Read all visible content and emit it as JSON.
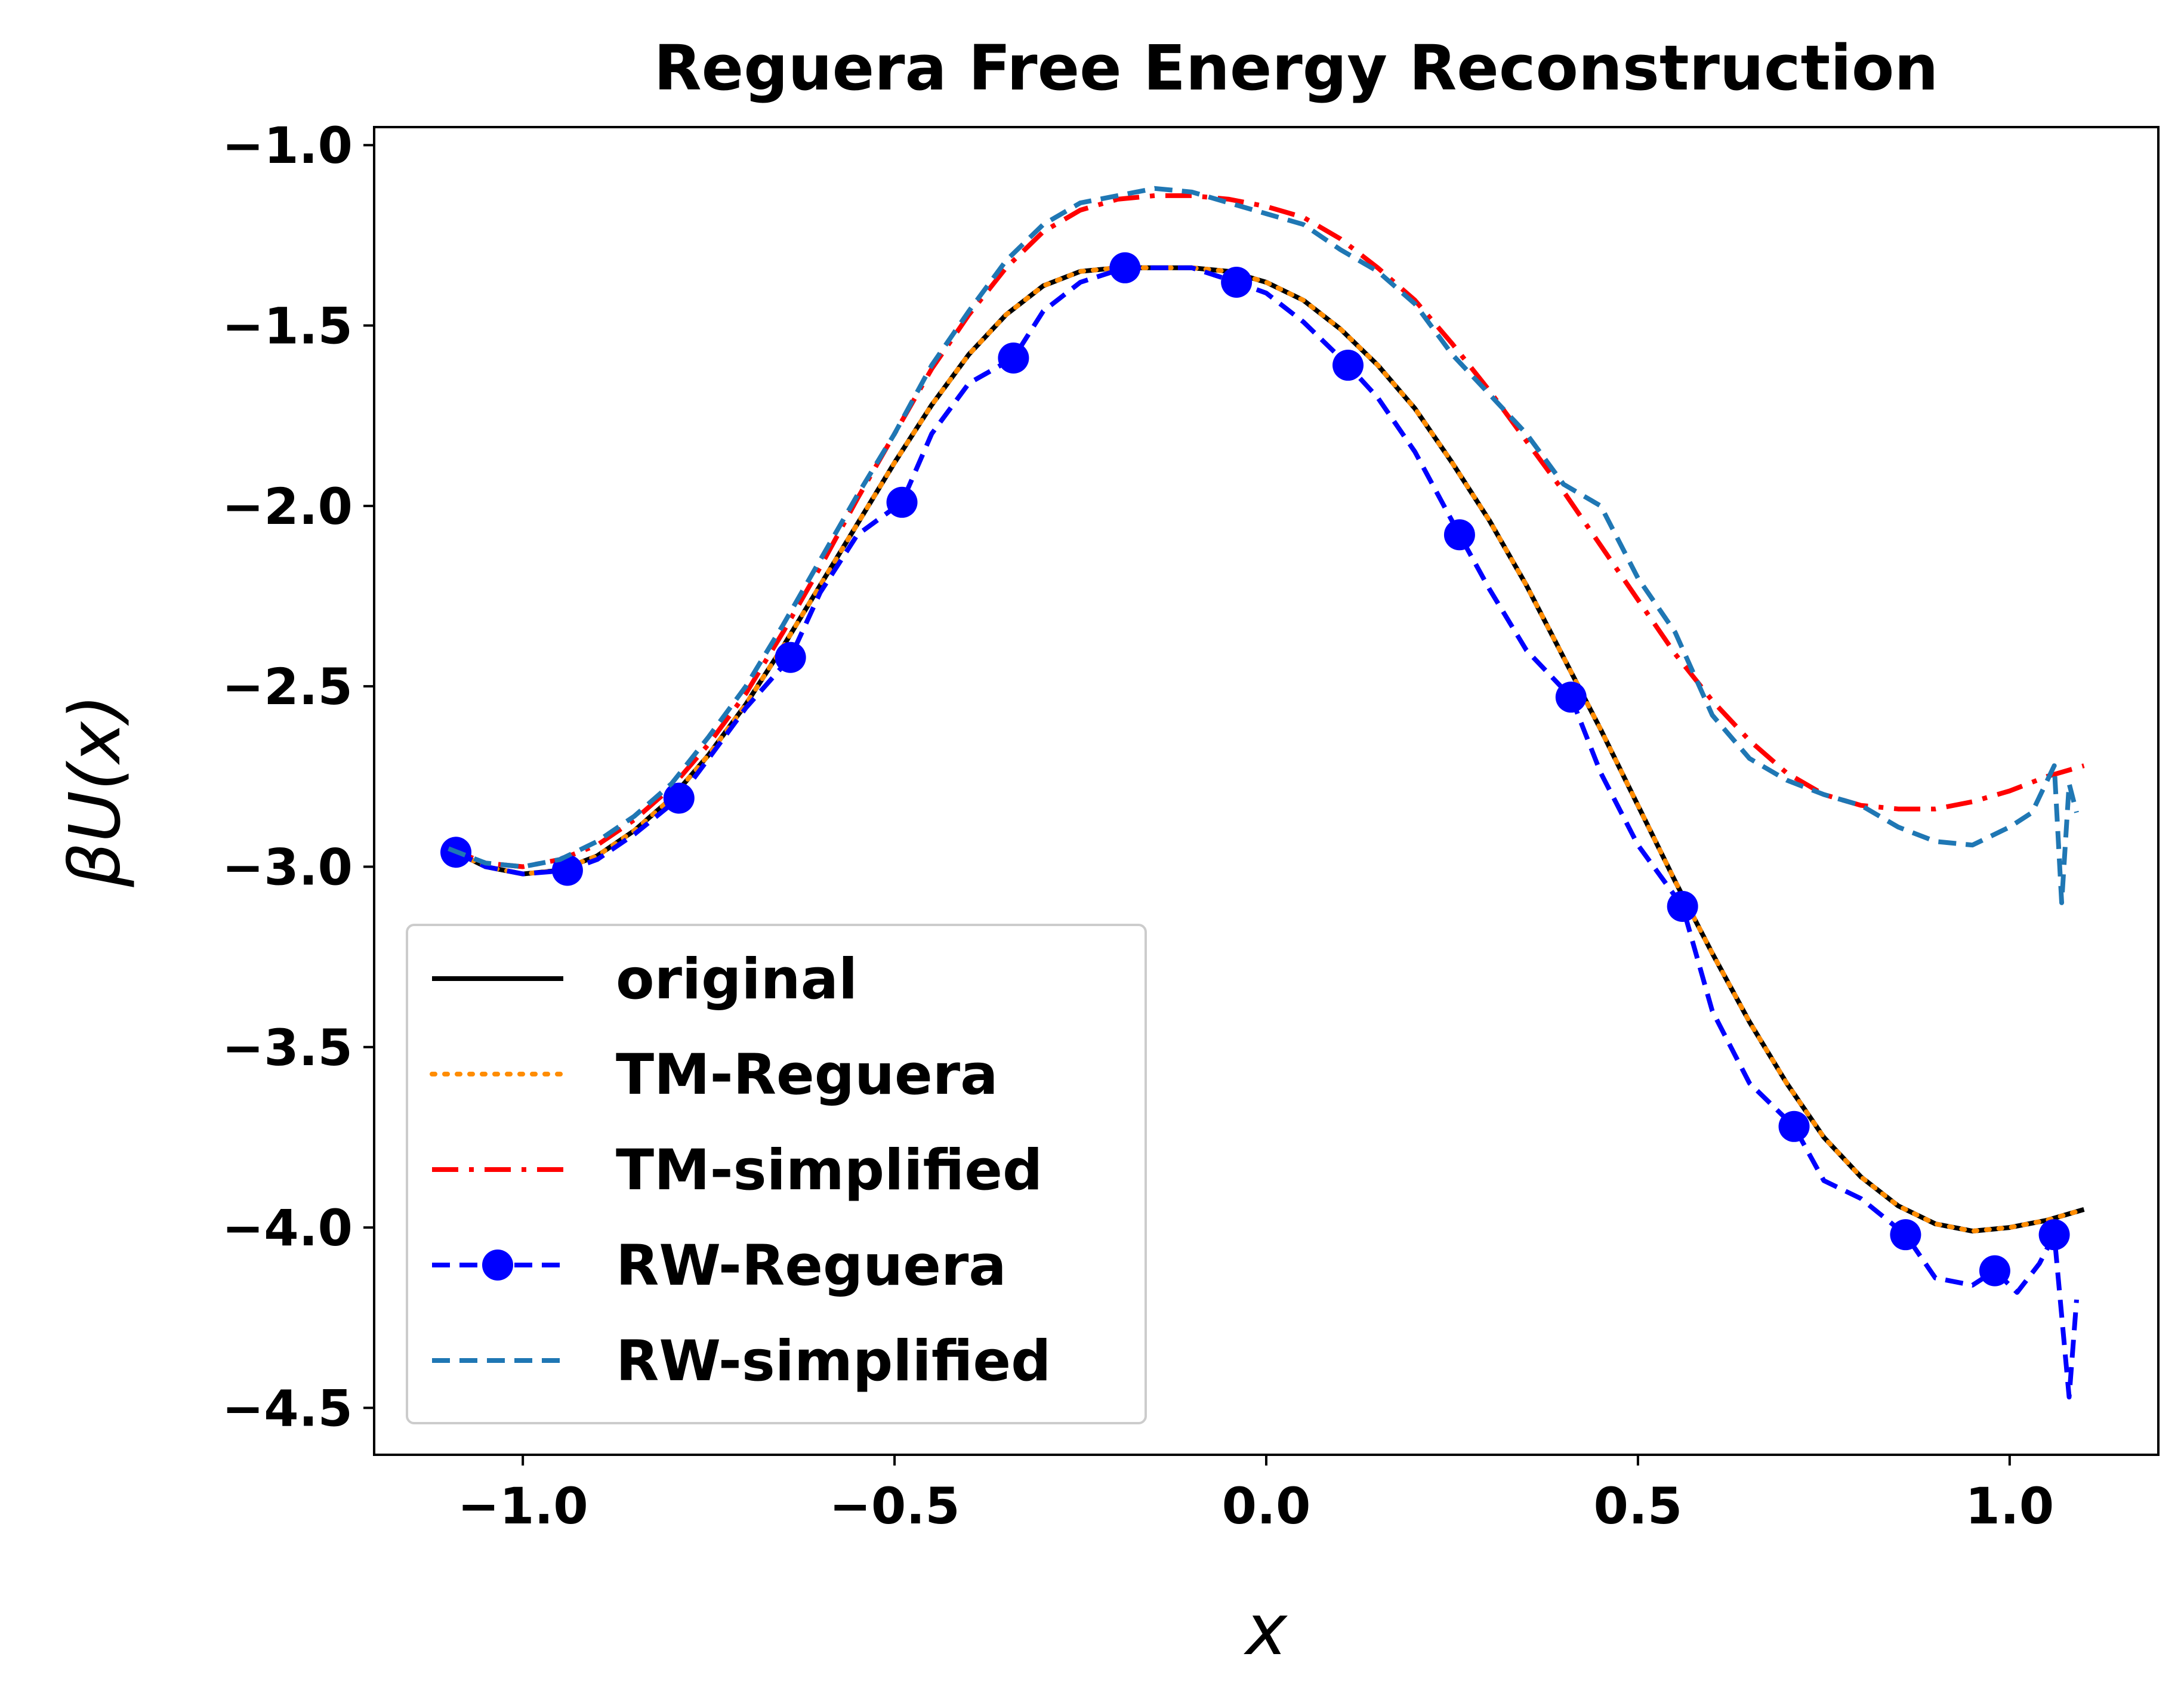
{
  "chart_data": {
    "type": "line",
    "title": "Reguera Free Energy Reconstruction",
    "xlabel": "x",
    "ylabel": "βU(x)",
    "xlim": [
      -1.2,
      1.2
    ],
    "ylim": [
      -4.63,
      -0.95
    ],
    "xticks": [
      -1.0,
      -0.5,
      0.0,
      0.5,
      1.0
    ],
    "xtick_labels": [
      "−1.0",
      "−0.5",
      "0.0",
      "0.5",
      "1.0"
    ],
    "yticks": [
      -1.0,
      -1.5,
      -2.0,
      -2.5,
      -3.0,
      -3.5,
      -4.0,
      -4.5
    ],
    "ytick_labels": [
      "−1.0",
      "−1.5",
      "−2.0",
      "−2.5",
      "−3.0",
      "−3.5",
      "−4.0",
      "−4.5"
    ],
    "grid": false,
    "legend_position": "lower-left",
    "series": [
      {
        "name": "original",
        "color": "#000000",
        "style": "solid",
        "x": [
          -1.1,
          -1.05,
          -1.0,
          -0.95,
          -0.9,
          -0.85,
          -0.8,
          -0.75,
          -0.7,
          -0.65,
          -0.6,
          -0.55,
          -0.5,
          -0.45,
          -0.4,
          -0.35,
          -0.3,
          -0.25,
          -0.2,
          -0.15,
          -0.1,
          -0.05,
          0.0,
          0.05,
          0.1,
          0.15,
          0.2,
          0.25,
          0.3,
          0.35,
          0.4,
          0.45,
          0.5,
          0.55,
          0.6,
          0.65,
          0.7,
          0.75,
          0.8,
          0.85,
          0.9,
          0.95,
          1.0,
          1.05,
          1.1
        ],
        "y": [
          -2.95,
          -3.0,
          -3.02,
          -3.01,
          -2.97,
          -2.9,
          -2.81,
          -2.69,
          -2.55,
          -2.39,
          -2.22,
          -2.05,
          -1.88,
          -1.72,
          -1.58,
          -1.47,
          -1.39,
          -1.35,
          -1.34,
          -1.34,
          -1.34,
          -1.35,
          -1.38,
          -1.43,
          -1.51,
          -1.61,
          -1.73,
          -1.88,
          -2.04,
          -2.22,
          -2.42,
          -2.62,
          -2.83,
          -3.04,
          -3.24,
          -3.43,
          -3.6,
          -3.75,
          -3.86,
          -3.94,
          -3.99,
          -4.01,
          -4.0,
          -3.98,
          -3.95
        ]
      },
      {
        "name": "TM-Reguera",
        "color": "#ff8c00",
        "style": "dotted",
        "x": [
          -1.1,
          -1.05,
          -1.0,
          -0.95,
          -0.9,
          -0.85,
          -0.8,
          -0.75,
          -0.7,
          -0.65,
          -0.6,
          -0.55,
          -0.5,
          -0.45,
          -0.4,
          -0.35,
          -0.3,
          -0.25,
          -0.2,
          -0.15,
          -0.1,
          -0.05,
          0.0,
          0.05,
          0.1,
          0.15,
          0.2,
          0.25,
          0.3,
          0.35,
          0.4,
          0.45,
          0.5,
          0.55,
          0.6,
          0.65,
          0.7,
          0.75,
          0.8,
          0.85,
          0.9,
          0.95,
          1.0,
          1.05,
          1.1
        ],
        "y": [
          -2.95,
          -3.0,
          -3.02,
          -3.01,
          -2.97,
          -2.9,
          -2.81,
          -2.69,
          -2.55,
          -2.39,
          -2.22,
          -2.05,
          -1.88,
          -1.72,
          -1.58,
          -1.47,
          -1.39,
          -1.35,
          -1.34,
          -1.34,
          -1.34,
          -1.35,
          -1.38,
          -1.43,
          -1.51,
          -1.61,
          -1.73,
          -1.88,
          -2.04,
          -2.22,
          -2.42,
          -2.62,
          -2.83,
          -3.04,
          -3.24,
          -3.43,
          -3.6,
          -3.75,
          -3.86,
          -3.94,
          -3.99,
          -4.01,
          -4.0,
          -3.98,
          -3.95
        ]
      },
      {
        "name": "TM-simplified",
        "color": "#ff0000",
        "style": "dashdot",
        "x": [
          -1.1,
          -1.05,
          -1.0,
          -0.95,
          -0.9,
          -0.85,
          -0.8,
          -0.75,
          -0.7,
          -0.65,
          -0.6,
          -0.55,
          -0.5,
          -0.45,
          -0.4,
          -0.35,
          -0.3,
          -0.25,
          -0.2,
          -0.15,
          -0.1,
          -0.05,
          0.0,
          0.05,
          0.1,
          0.15,
          0.2,
          0.25,
          0.3,
          0.35,
          0.4,
          0.45,
          0.5,
          0.55,
          0.6,
          0.65,
          0.7,
          0.75,
          0.8,
          0.85,
          0.9,
          0.95,
          1.0,
          1.05,
          1.1
        ],
        "y": [
          -2.95,
          -2.99,
          -3.0,
          -2.98,
          -2.94,
          -2.87,
          -2.78,
          -2.66,
          -2.52,
          -2.35,
          -2.17,
          -1.98,
          -1.8,
          -1.62,
          -1.47,
          -1.34,
          -1.24,
          -1.18,
          -1.15,
          -1.14,
          -1.14,
          -1.15,
          -1.17,
          -1.2,
          -1.26,
          -1.34,
          -1.43,
          -1.55,
          -1.68,
          -1.82,
          -1.96,
          -2.11,
          -2.26,
          -2.41,
          -2.54,
          -2.65,
          -2.74,
          -2.8,
          -2.83,
          -2.84,
          -2.84,
          -2.82,
          -2.79,
          -2.75,
          -2.72
        ]
      },
      {
        "name": "RW-Reguera",
        "color": "#0000ff",
        "style": "dashed-markers",
        "x": [
          -1.09,
          -1.05,
          -1.0,
          -0.94,
          -0.9,
          -0.85,
          -0.79,
          -0.75,
          -0.7,
          -0.64,
          -0.6,
          -0.55,
          -0.49,
          -0.45,
          -0.4,
          -0.34,
          -0.3,
          -0.25,
          -0.19,
          -0.15,
          -0.1,
          -0.04,
          0.0,
          0.05,
          0.11,
          0.15,
          0.2,
          0.26,
          0.3,
          0.35,
          0.41,
          0.45,
          0.5,
          0.56,
          0.6,
          0.65,
          0.71,
          0.75,
          0.8,
          0.86,
          0.9,
          0.95,
          0.98,
          1.01,
          1.04,
          1.06,
          1.08,
          1.09
        ],
        "y": [
          -2.96,
          -3.0,
          -3.02,
          -3.01,
          -2.98,
          -2.91,
          -2.81,
          -2.7,
          -2.56,
          -2.42,
          -2.24,
          -2.08,
          -1.99,
          -1.8,
          -1.66,
          -1.59,
          -1.46,
          -1.38,
          -1.34,
          -1.34,
          -1.34,
          -1.38,
          -1.41,
          -1.49,
          -1.61,
          -1.7,
          -1.85,
          -2.08,
          -2.23,
          -2.4,
          -2.53,
          -2.74,
          -2.94,
          -3.11,
          -3.4,
          -3.6,
          -3.72,
          -3.87,
          -3.92,
          -4.02,
          -4.14,
          -4.16,
          -4.12,
          -4.18,
          -4.1,
          -4.02,
          -4.47,
          -4.2
        ]
      },
      {
        "name": "RW-simplified",
        "color": "#1f77b4",
        "style": "dashed",
        "x": [
          -1.1,
          -1.05,
          -1.0,
          -0.95,
          -0.9,
          -0.85,
          -0.8,
          -0.75,
          -0.7,
          -0.65,
          -0.6,
          -0.55,
          -0.5,
          -0.45,
          -0.4,
          -0.35,
          -0.3,
          -0.25,
          -0.2,
          -0.15,
          -0.1,
          -0.05,
          0.0,
          0.05,
          0.1,
          0.15,
          0.2,
          0.25,
          0.3,
          0.35,
          0.4,
          0.45,
          0.5,
          0.55,
          0.6,
          0.65,
          0.7,
          0.75,
          0.8,
          0.85,
          0.9,
          0.95,
          1.0,
          1.03,
          1.06,
          1.07,
          1.08,
          1.09
        ],
        "y": [
          -2.95,
          -2.99,
          -3.0,
          -2.98,
          -2.93,
          -2.86,
          -2.77,
          -2.64,
          -2.5,
          -2.33,
          -2.15,
          -1.97,
          -1.8,
          -1.61,
          -1.46,
          -1.32,
          -1.22,
          -1.16,
          -1.14,
          -1.12,
          -1.13,
          -1.16,
          -1.19,
          -1.22,
          -1.29,
          -1.35,
          -1.44,
          -1.58,
          -1.69,
          -1.8,
          -1.94,
          -2.0,
          -2.2,
          -2.35,
          -2.58,
          -2.7,
          -2.76,
          -2.8,
          -2.83,
          -2.89,
          -2.93,
          -2.94,
          -2.89,
          -2.85,
          -2.72,
          -3.1,
          -2.77,
          -2.85
        ]
      }
    ]
  }
}
